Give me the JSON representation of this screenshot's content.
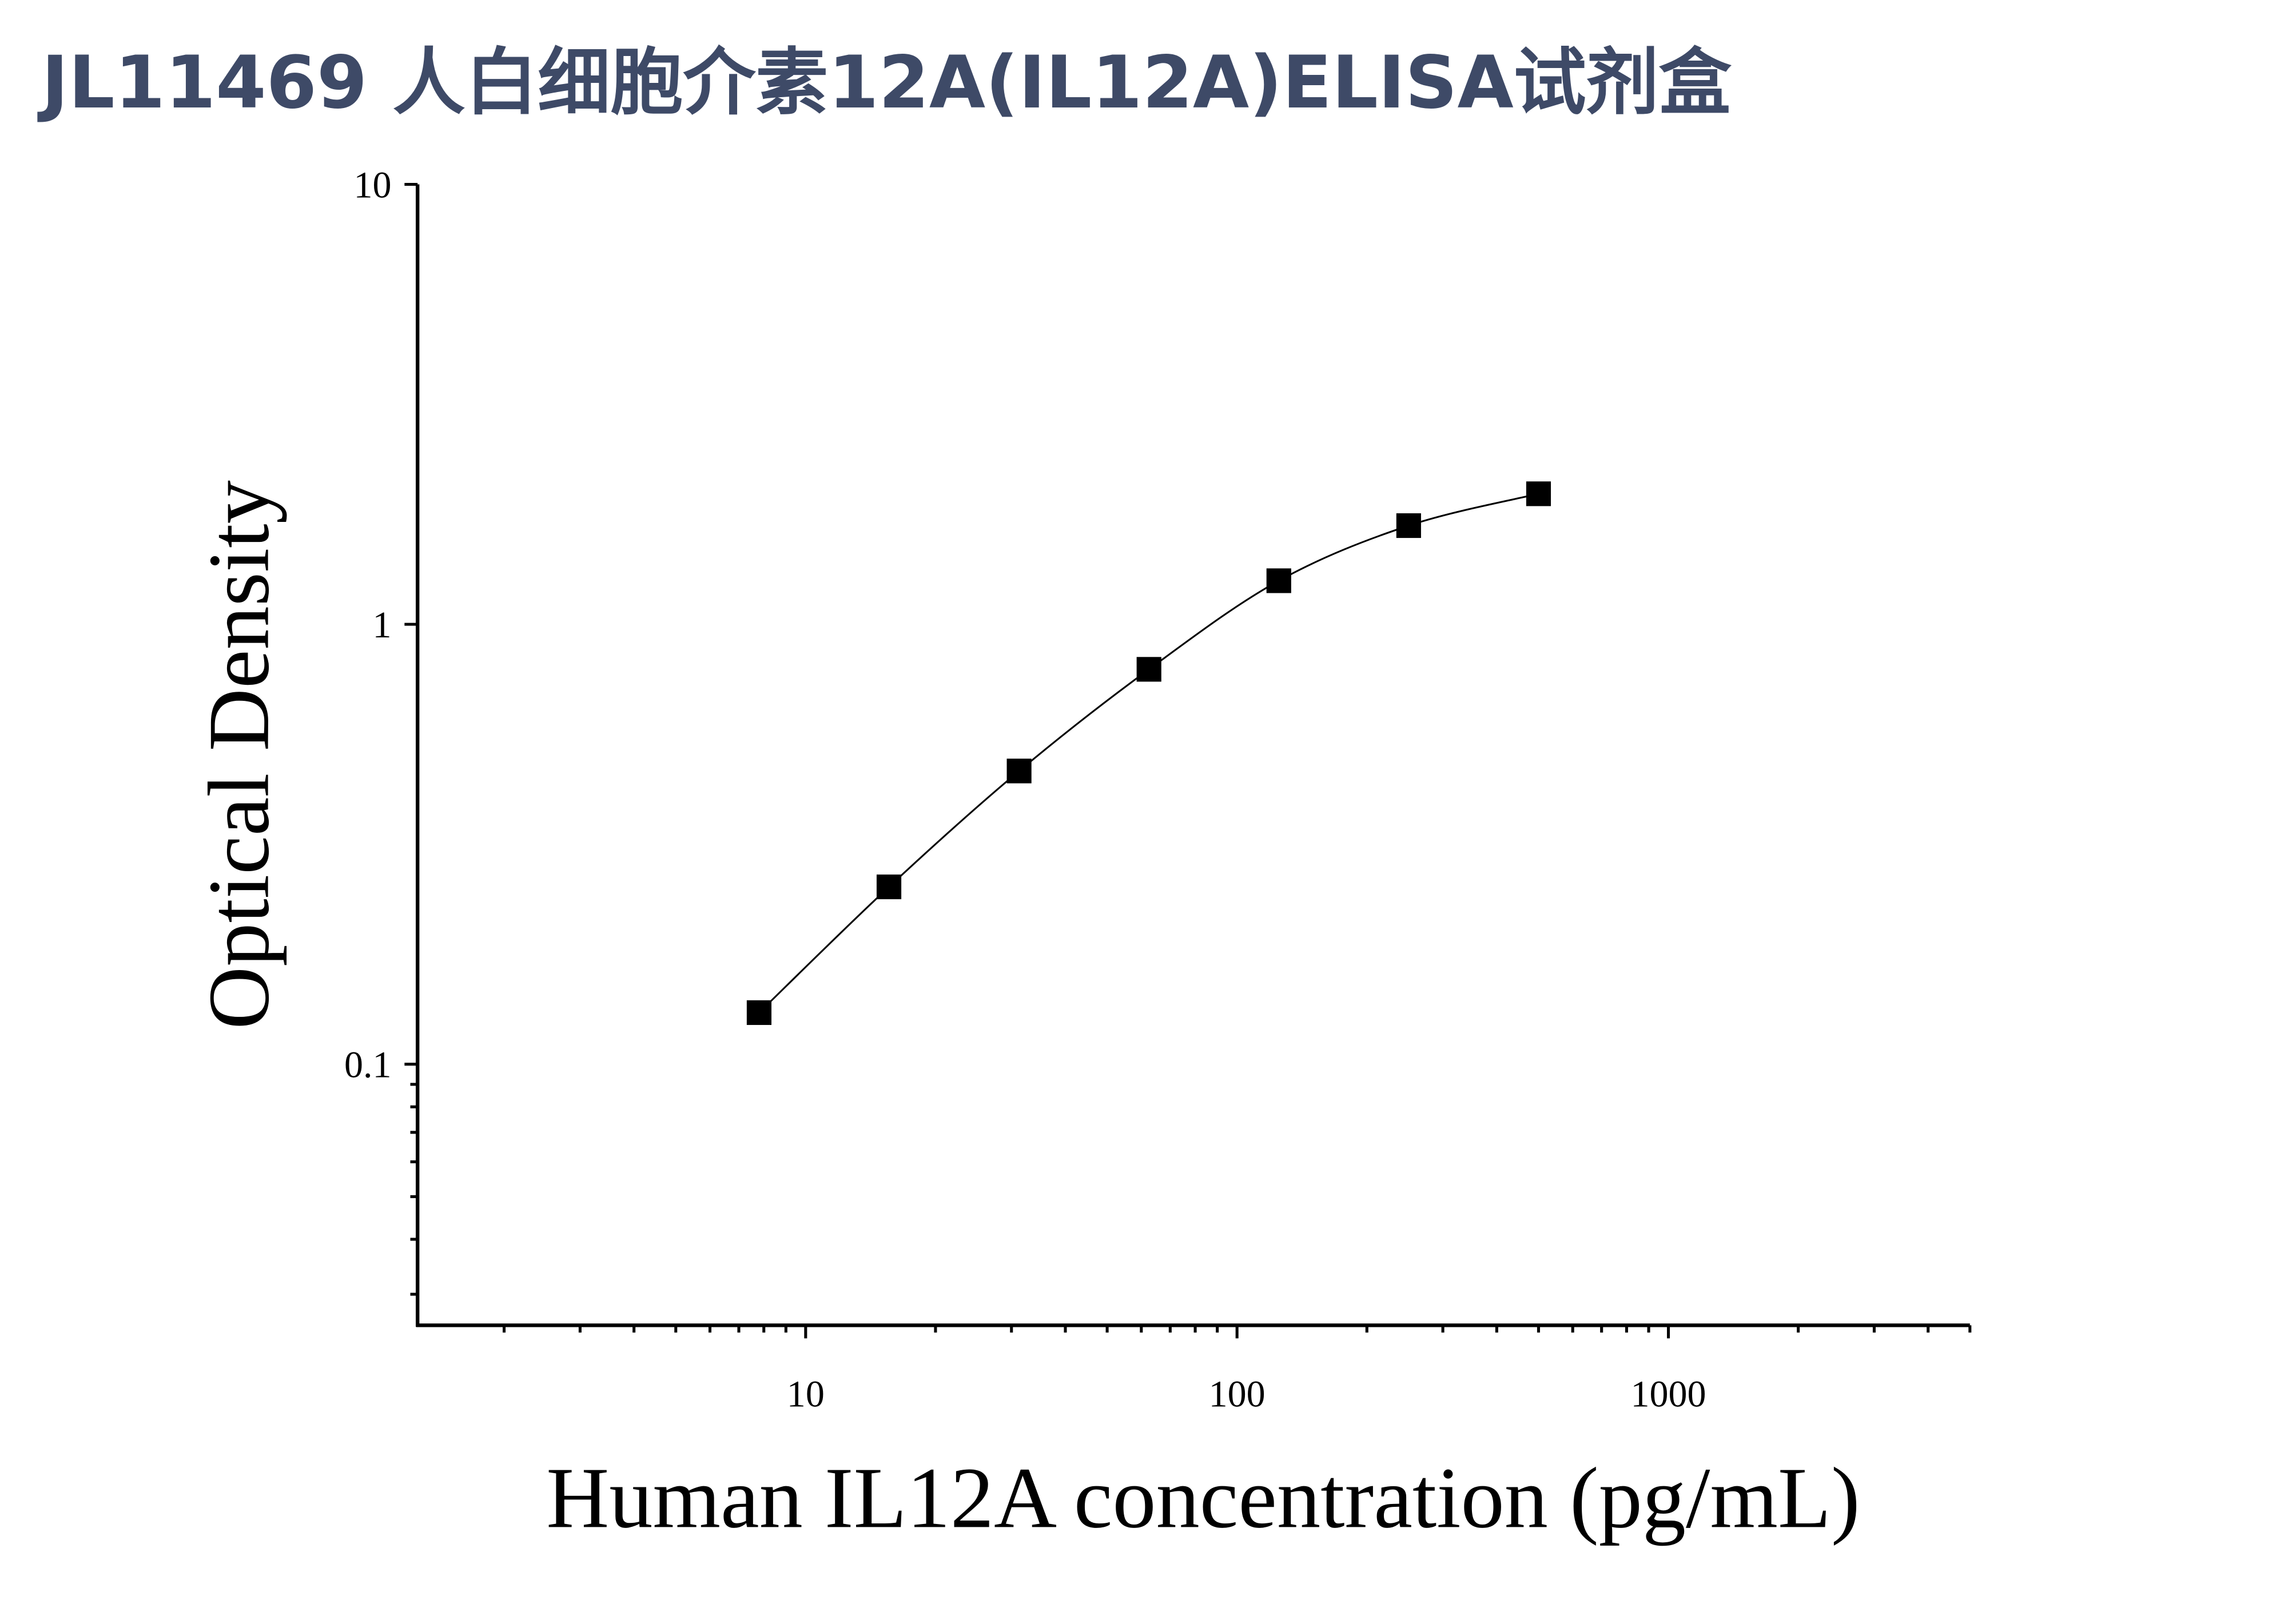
{
  "chart_data": {
    "type": "scatter",
    "title": "JL11469 人白细胞介素12A(IL12A)ELISA试剂盒",
    "x_label": "Human IL12A concentration (pg/mL)",
    "y_label": "Optical Density",
    "x": [
      7.8,
      15.6,
      31.25,
      62.5,
      125,
      250,
      500
    ],
    "values": [
      0.131,
      0.253,
      0.464,
      0.79,
      1.256,
      1.676,
      1.98
    ],
    "color": "#000000",
    "x_log": true,
    "y_log": true,
    "xlim": [
      1.26,
      5000
    ],
    "ylim": [
      0.0255,
      10
    ],
    "xticks": [
      10,
      100,
      1000
    ],
    "yticks": [
      0.1,
      1,
      10
    ],
    "x_minor_ticks": [
      2,
      3,
      4,
      5,
      6,
      7,
      8,
      9,
      20,
      30,
      40,
      50,
      60,
      70,
      80,
      90,
      200,
      300,
      400,
      500,
      600,
      700,
      800,
      900,
      2000,
      3000,
      4000,
      5000
    ],
    "y_minor_ticks": [
      0.03,
      0.04,
      0.05,
      0.06,
      0.07,
      0.08,
      0.09
    ],
    "fit_line": true
  }
}
